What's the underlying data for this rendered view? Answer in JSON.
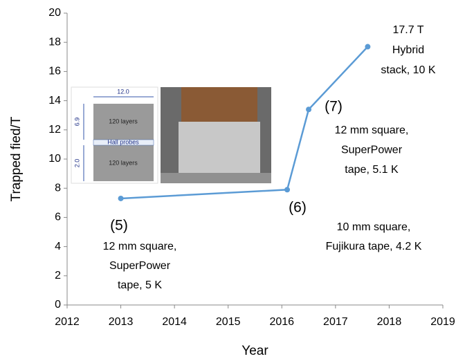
{
  "chart_data": {
    "type": "line",
    "x_label": "Year",
    "y_label": "Trapped fied/T",
    "x": [
      2013,
      2016.1,
      2016.5,
      2017.6
    ],
    "series": [
      {
        "color": "#5b9bd5",
        "values": [
          7.3,
          7.9,
          13.4,
          17.7
        ]
      }
    ],
    "xlim": [
      2012,
      2019
    ],
    "xticks": [
      2012,
      2013,
      2014,
      2015,
      2016,
      2017,
      2018,
      2019
    ],
    "ylim": [
      0,
      20
    ],
    "yticks": [
      0,
      2,
      4,
      6,
      8,
      10,
      12,
      14,
      16,
      18,
      20
    ],
    "grid": false,
    "annotations": [
      [
        "17.7 T",
        "Hybrid",
        "stack, 10 K"
      ],
      [
        "(7)"
      ],
      [
        "12 mm square,",
        "SuperPower",
        "tape, 5.1 K"
      ],
      [
        "(6)"
      ],
      [
        "10 mm square,",
        "Fujikura tape, 4.2 K"
      ],
      [
        "(5)"
      ],
      [
        "12 mm square,",
        "SuperPower",
        "tape, 5 K"
      ]
    ],
    "inset_labels": [
      "12.0",
      "6.9",
      "120 layers",
      "Hall probes",
      "2.0",
      "120 layers"
    ]
  }
}
